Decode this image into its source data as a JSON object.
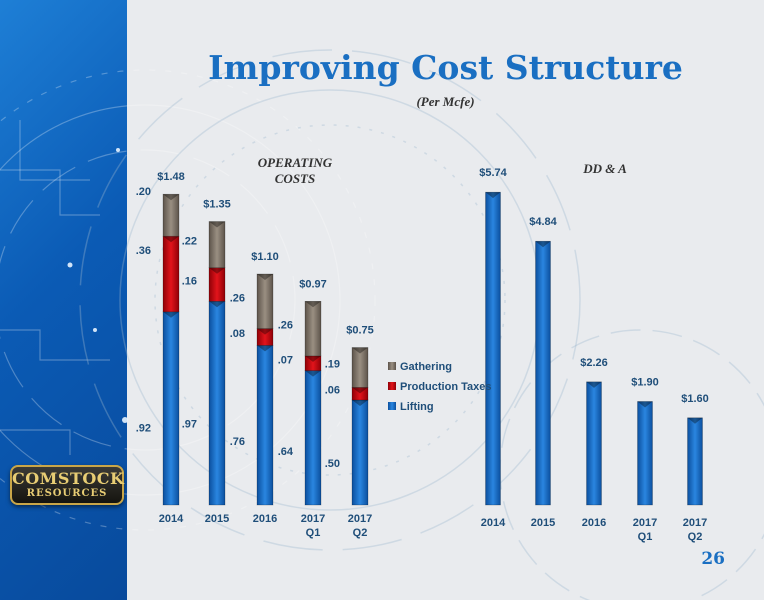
{
  "slide": {
    "title": "Improving Cost Structure",
    "subtitle": "(Per Mcfe)",
    "page_number": "26",
    "logo_line1": "COMSTOCK",
    "logo_line2": "RESOURCES"
  },
  "colors": {
    "title": "#1a6fc2",
    "lifting": "#1565c0",
    "production_taxes": "#c0000f",
    "gathering": "#7a6f62",
    "label": "#1f4e79"
  },
  "chart_data": [
    {
      "type": "bar",
      "stacked": true,
      "title": "OPERATING COSTS",
      "categories": [
        "2014",
        "2015",
        "2016",
        "2017 Q1",
        "2017 Q2"
      ],
      "series": [
        {
          "name": "Lifting",
          "values": [
            0.92,
            0.97,
            0.76,
            0.64,
            0.5
          ],
          "labels": [
            ".92",
            ".97",
            ".76",
            ".64",
            ".50"
          ]
        },
        {
          "name": "Production Taxes",
          "values": [
            0.36,
            0.16,
            0.08,
            0.07,
            0.06
          ],
          "labels": [
            ".36",
            ".16",
            ".08",
            ".07",
            ".06"
          ]
        },
        {
          "name": "Gathering",
          "values": [
            0.2,
            0.22,
            0.26,
            0.26,
            0.19
          ],
          "labels": [
            ".20",
            ".22",
            ".26",
            ".26",
            ".19"
          ]
        }
      ],
      "totals": [
        "$1.48",
        "$1.35",
        "$1.10",
        "$0.97",
        "$0.75"
      ],
      "total_values": [
        1.48,
        1.35,
        1.1,
        0.97,
        0.75
      ],
      "legend": [
        "Gathering",
        "Production Taxes",
        "Lifting"
      ],
      "legend_position": "right",
      "grid": false
    },
    {
      "type": "bar",
      "title": "DD & A",
      "categories": [
        "2014",
        "2015",
        "2016",
        "2017 Q1",
        "2017 Q2"
      ],
      "values": [
        5.74,
        4.84,
        2.26,
        1.9,
        1.6
      ],
      "value_labels": [
        "$5.74",
        "$4.84",
        "$2.26",
        "$1.90",
        "$1.60"
      ],
      "grid": false
    }
  ]
}
